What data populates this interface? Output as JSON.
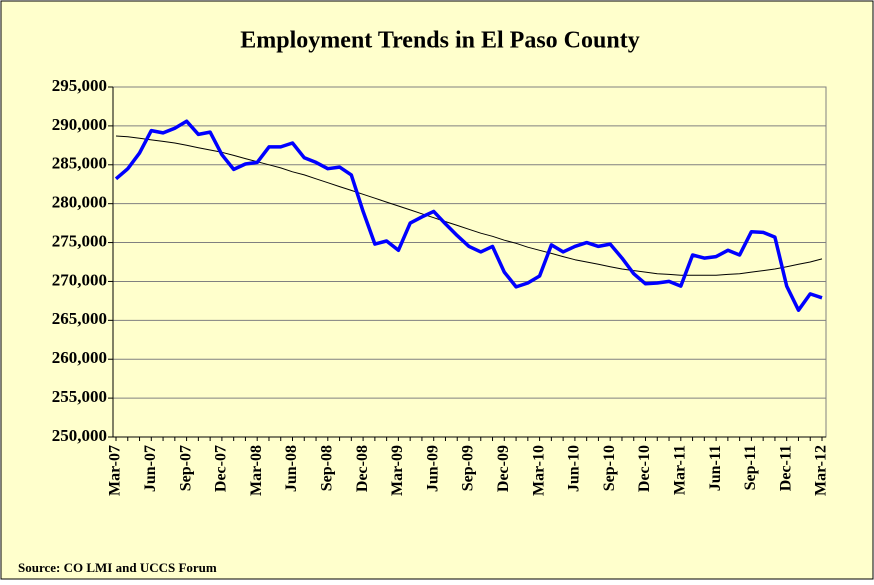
{
  "chart_data": {
    "type": "line",
    "title": "Employment Trends in El Paso County",
    "source": "Source: CO LMI and UCCS Forum",
    "categories": [
      "Mar-07",
      null,
      null,
      "Jun-07",
      null,
      null,
      "Sep-07",
      null,
      null,
      "Dec-07",
      null,
      null,
      "Mar-08",
      null,
      null,
      "Jun-08",
      null,
      null,
      "Sep-08",
      null,
      null,
      "Dec-08",
      null,
      null,
      "Mar-09",
      null,
      null,
      "Jun-09",
      null,
      null,
      "Sep-09",
      null,
      null,
      "Dec-09",
      null,
      null,
      "Mar-10",
      null,
      null,
      "Jun-10",
      null,
      null,
      "Sep-10",
      null,
      null,
      "Dec-10",
      null,
      null,
      "Mar-11",
      null,
      null,
      "Jun-11",
      null,
      null,
      "Sep-11",
      null,
      null,
      "Dec-11",
      null,
      null,
      "Mar-12"
    ],
    "series": [
      {
        "color": "#0000ff",
        "values": [
          283200,
          284500,
          286500,
          289400,
          289100,
          289700,
          290600,
          288900,
          289200,
          286300,
          284400,
          285100,
          285300,
          287300,
          287300,
          287800,
          285900,
          285300,
          284500,
          284700,
          283700,
          279000,
          274800,
          275200,
          274000,
          277500,
          278300,
          279000,
          277400,
          275900,
          274500,
          273800,
          274500,
          271200,
          269300,
          269800,
          270700,
          274700,
          273800,
          274500,
          275000,
          274500,
          274800,
          273000,
          271000,
          269700,
          269800,
          270000,
          269400,
          273400,
          273000,
          273200,
          274000,
          273400,
          276400,
          276300,
          275700,
          269400,
          266300,
          268400,
          267900
        ]
      },
      {
        "color": "#000000",
        "values": [
          288700,
          288600,
          288400,
          288200,
          288000,
          287800,
          287500,
          287200,
          286900,
          286600,
          286200,
          285800,
          285400,
          285000,
          284600,
          284100,
          283700,
          283200,
          282700,
          282200,
          281700,
          281200,
          280700,
          280200,
          279700,
          279200,
          278700,
          278200,
          277700,
          277200,
          276700,
          276200,
          275800,
          275300,
          274900,
          274400,
          274000,
          273600,
          273200,
          272800,
          272500,
          272200,
          271900,
          271600,
          271400,
          271200,
          271000,
          270900,
          270800,
          270800,
          270800,
          270800,
          270900,
          271000,
          271200,
          271400,
          271600,
          271900,
          272200,
          272500,
          272900
        ]
      }
    ],
    "ylim": [
      250000,
      295000
    ],
    "yticks": [
      {
        "value": 250000,
        "label": "250,000"
      },
      {
        "value": 255000,
        "label": "255,000"
      },
      {
        "value": 260000,
        "label": "260,000"
      },
      {
        "value": 265000,
        "label": "265,000"
      },
      {
        "value": 270000,
        "label": "270,000"
      },
      {
        "value": 275000,
        "label": "275,000"
      },
      {
        "value": 280000,
        "label": "280,000"
      },
      {
        "value": 285000,
        "label": "285,000"
      },
      {
        "value": 290000,
        "label": "290,000"
      },
      {
        "value": 295000,
        "label": "295,000"
      }
    ],
    "grid": true
  }
}
